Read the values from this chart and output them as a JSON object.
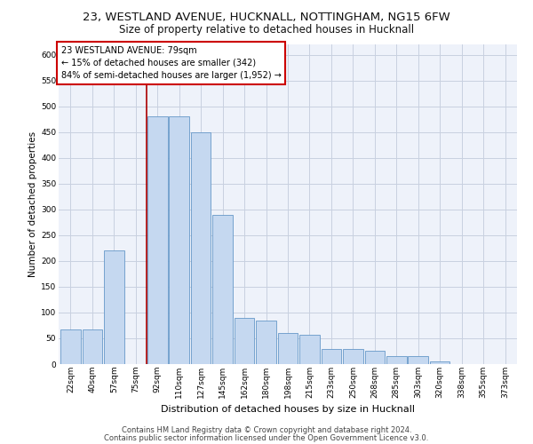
{
  "title1": "23, WESTLAND AVENUE, HUCKNALL, NOTTINGHAM, NG15 6FW",
  "title2": "Size of property relative to detached houses in Hucknall",
  "xlabel": "Distribution of detached houses by size in Hucknall",
  "ylabel": "Number of detached properties",
  "categories": [
    "22sqm",
    "40sqm",
    "57sqm",
    "75sqm",
    "92sqm",
    "110sqm",
    "127sqm",
    "145sqm",
    "162sqm",
    "180sqm",
    "198sqm",
    "215sqm",
    "233sqm",
    "250sqm",
    "268sqm",
    "285sqm",
    "303sqm",
    "320sqm",
    "338sqm",
    "355sqm",
    "373sqm"
  ],
  "values": [
    68,
    68,
    220,
    0,
    480,
    480,
    450,
    290,
    90,
    85,
    60,
    57,
    30,
    30,
    25,
    15,
    15,
    5,
    0,
    0,
    0
  ],
  "bar_color": "#c5d8f0",
  "bar_edge_color": "#6698c8",
  "vline_x": 3.5,
  "vline_color": "#aa0000",
  "annotation_text": "23 WESTLAND AVENUE: 79sqm\n← 15% of detached houses are smaller (342)\n84% of semi-detached houses are larger (1,952) →",
  "annotation_box_color": "#cc0000",
  "annotation_text_color": "#000000",
  "ylim": [
    0,
    620
  ],
  "yticks": [
    0,
    50,
    100,
    150,
    200,
    250,
    300,
    350,
    400,
    450,
    500,
    550,
    600
  ],
  "background_color": "#eef2fa",
  "grid_color": "#c8d0e0",
  "footer1": "Contains HM Land Registry data © Crown copyright and database right 2024.",
  "footer2": "Contains public sector information licensed under the Open Government Licence v3.0.",
  "title1_fontsize": 9.5,
  "title2_fontsize": 8.5,
  "xlabel_fontsize": 8,
  "ylabel_fontsize": 7.5,
  "tick_fontsize": 6.5,
  "annotation_fontsize": 7,
  "footer_fontsize": 6
}
